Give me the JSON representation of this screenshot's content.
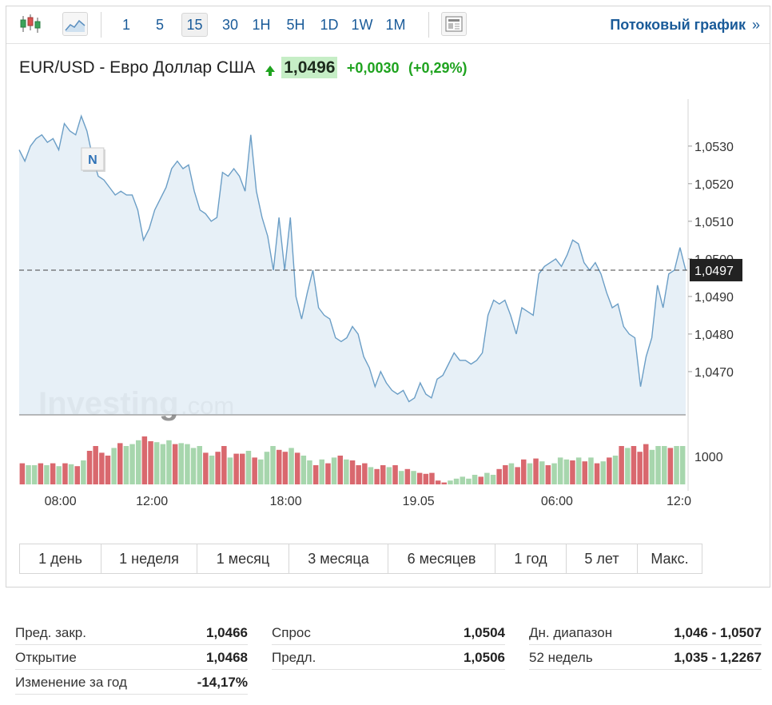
{
  "toolbar": {
    "candles_icon": "candlestick-icon",
    "area_icon": "area-chart-icon",
    "timeframes": [
      "1",
      "5",
      "15",
      "30",
      "1H",
      "5H",
      "1D",
      "1W",
      "1M"
    ],
    "active_timeframe": "15",
    "news_icon": "newspaper-icon",
    "stream_label": "Потоковый график",
    "stream_chevron": "»"
  },
  "instrument": {
    "title": "EUR/USD - Евро Доллар США",
    "price": "1,0496",
    "change": "+0,0030",
    "change_pct": "(+0,29%)",
    "up_color": "#1fa31f"
  },
  "chart_data": {
    "type": "area",
    "x_tick_labels": [
      "08:00",
      "12:00",
      "18:00",
      "19.05",
      "06:00",
      "12:0"
    ],
    "y_tick_labels": [
      "1,0530",
      "1,0520",
      "1,0510",
      "1,0500",
      "1,0490",
      "1,0480",
      "1,0470"
    ],
    "ylim": [
      1.04585,
      1.05425
    ],
    "current_price_label": "1,0497",
    "current_price": 1.0497,
    "event_marker": "N",
    "watermark_brand": "Investing",
    "watermark_suffix": ".com",
    "series": [
      {
        "values": [
          1.0529,
          1.0526,
          1.053,
          1.0532,
          1.0533,
          1.0531,
          1.0532,
          1.0529,
          1.0536,
          1.0534,
          1.0533,
          1.0538,
          1.0534,
          1.0527,
          1.0522,
          1.0521,
          1.0519,
          1.0517,
          1.0518,
          1.0517,
          1.0517,
          1.0513,
          1.0505,
          1.0508,
          1.0513,
          1.0516,
          1.0519,
          1.0524,
          1.0526,
          1.0524,
          1.0525,
          1.0518,
          1.0513,
          1.0512,
          1.051,
          1.0511,
          1.0523,
          1.0522,
          1.0524,
          1.0522,
          1.0518,
          1.0533,
          1.0518,
          1.0511,
          1.0506,
          1.0497,
          1.0511,
          1.0497,
          1.0511,
          1.049,
          1.0484,
          1.0491,
          1.0497,
          1.0487,
          1.0485,
          1.0484,
          1.0479,
          1.0478,
          1.0479,
          1.0482,
          1.048,
          1.0474,
          1.0471,
          1.0466,
          1.047,
          1.0467,
          1.0465,
          1.0464,
          1.0465,
          1.0462,
          1.0463,
          1.0467,
          1.0464,
          1.0463,
          1.0468,
          1.0469,
          1.0472,
          1.0475,
          1.0473,
          1.0473,
          1.0472,
          1.0473,
          1.0475,
          1.0485,
          1.0489,
          1.0488,
          1.0489,
          1.0485,
          1.048,
          1.0487,
          1.0486,
          1.0485,
          1.0496,
          1.0498,
          1.0499,
          1.05,
          1.0498,
          1.0501,
          1.0505,
          1.0504,
          1.0499,
          1.0497,
          1.0499,
          1.0496,
          1.0491,
          1.0487,
          1.0488,
          1.0482,
          1.048,
          1.0479,
          1.0466,
          1.0474,
          1.0479,
          1.0493,
          1.0487,
          1.0496,
          1.0497,
          1.0503,
          1.0497
        ]
      }
    ],
    "volume_tick_label": "1000",
    "volume": [
      {
        "v": 22,
        "up": false
      },
      {
        "v": 20,
        "up": true
      },
      {
        "v": 20,
        "up": true
      },
      {
        "v": 22,
        "up": false
      },
      {
        "v": 20,
        "up": true
      },
      {
        "v": 22,
        "up": false
      },
      {
        "v": 19,
        "up": true
      },
      {
        "v": 22,
        "up": false
      },
      {
        "v": 21,
        "up": true
      },
      {
        "v": 19,
        "up": false
      },
      {
        "v": 25,
        "up": true
      },
      {
        "v": 35,
        "up": false
      },
      {
        "v": 40,
        "up": false
      },
      {
        "v": 33,
        "up": false
      },
      {
        "v": 30,
        "up": false
      },
      {
        "v": 38,
        "up": true
      },
      {
        "v": 43,
        "up": false
      },
      {
        "v": 40,
        "up": true
      },
      {
        "v": 42,
        "up": true
      },
      {
        "v": 46,
        "up": true
      },
      {
        "v": 50,
        "up": false
      },
      {
        "v": 45,
        "up": false
      },
      {
        "v": 44,
        "up": true
      },
      {
        "v": 42,
        "up": true
      },
      {
        "v": 46,
        "up": true
      },
      {
        "v": 42,
        "up": false
      },
      {
        "v": 43,
        "up": true
      },
      {
        "v": 42,
        "up": true
      },
      {
        "v": 38,
        "up": true
      },
      {
        "v": 40,
        "up": true
      },
      {
        "v": 33,
        "up": false
      },
      {
        "v": 30,
        "up": true
      },
      {
        "v": 34,
        "up": false
      },
      {
        "v": 40,
        "up": false
      },
      {
        "v": 28,
        "up": true
      },
      {
        "v": 32,
        "up": false
      },
      {
        "v": 32,
        "up": false
      },
      {
        "v": 35,
        "up": true
      },
      {
        "v": 28,
        "up": false
      },
      {
        "v": 26,
        "up": true
      },
      {
        "v": 34,
        "up": true
      },
      {
        "v": 40,
        "up": true
      },
      {
        "v": 36,
        "up": false
      },
      {
        "v": 34,
        "up": false
      },
      {
        "v": 38,
        "up": true
      },
      {
        "v": 33,
        "up": false
      },
      {
        "v": 30,
        "up": true
      },
      {
        "v": 25,
        "up": true
      },
      {
        "v": 20,
        "up": false
      },
      {
        "v": 26,
        "up": true
      },
      {
        "v": 22,
        "up": false
      },
      {
        "v": 28,
        "up": true
      },
      {
        "v": 30,
        "up": false
      },
      {
        "v": 26,
        "up": true
      },
      {
        "v": 25,
        "up": false
      },
      {
        "v": 20,
        "up": false
      },
      {
        "v": 22,
        "up": false
      },
      {
        "v": 18,
        "up": true
      },
      {
        "v": 16,
        "up": false
      },
      {
        "v": 20,
        "up": false
      },
      {
        "v": 18,
        "up": true
      },
      {
        "v": 20,
        "up": false
      },
      {
        "v": 14,
        "up": true
      },
      {
        "v": 16,
        "up": false
      },
      {
        "v": 14,
        "up": true
      },
      {
        "v": 12,
        "up": false
      },
      {
        "v": 11,
        "up": false
      },
      {
        "v": 12,
        "up": false
      },
      {
        "v": 4,
        "up": false
      },
      {
        "v": 2,
        "up": false
      },
      {
        "v": 4,
        "up": true
      },
      {
        "v": 6,
        "up": true
      },
      {
        "v": 8,
        "up": true
      },
      {
        "v": 6,
        "up": true
      },
      {
        "v": 10,
        "up": true
      },
      {
        "v": 8,
        "up": false
      },
      {
        "v": 12,
        "up": true
      },
      {
        "v": 10,
        "up": true
      },
      {
        "v": 16,
        "up": false
      },
      {
        "v": 20,
        "up": false
      },
      {
        "v": 22,
        "up": true
      },
      {
        "v": 18,
        "up": false
      },
      {
        "v": 26,
        "up": false
      },
      {
        "v": 22,
        "up": true
      },
      {
        "v": 27,
        "up": false
      },
      {
        "v": 24,
        "up": true
      },
      {
        "v": 20,
        "up": false
      },
      {
        "v": 22,
        "up": true
      },
      {
        "v": 28,
        "up": true
      },
      {
        "v": 26,
        "up": true
      },
      {
        "v": 25,
        "up": false
      },
      {
        "v": 28,
        "up": true
      },
      {
        "v": 24,
        "up": false
      },
      {
        "v": 28,
        "up": true
      },
      {
        "v": 22,
        "up": false
      },
      {
        "v": 24,
        "up": true
      },
      {
        "v": 28,
        "up": false
      },
      {
        "v": 30,
        "up": true
      },
      {
        "v": 40,
        "up": false
      },
      {
        "v": 38,
        "up": true
      },
      {
        "v": 40,
        "up": false
      },
      {
        "v": 34,
        "up": false
      },
      {
        "v": 42,
        "up": false
      },
      {
        "v": 36,
        "up": true
      },
      {
        "v": 40,
        "up": true
      },
      {
        "v": 40,
        "up": true
      },
      {
        "v": 38,
        "up": false
      },
      {
        "v": 40,
        "up": true
      },
      {
        "v": 40,
        "up": true
      }
    ],
    "line_color": "#6b9ec6",
    "fill_color": "#e4eef6",
    "vol_up_color": "#a7d6ad",
    "vol_down_color": "#d9686e"
  },
  "periods": [
    "1 день",
    "1 неделя",
    "1 месяц",
    "3 месяца",
    "6 месяцев",
    "1 год",
    "5 лет",
    "Макс."
  ],
  "stats": {
    "col1": [
      {
        "label": "Пред. закр.",
        "value": "1,0466"
      },
      {
        "label": "Открытие",
        "value": "1,0468"
      },
      {
        "label": "Изменение за год",
        "value": "-14,17%"
      }
    ],
    "col2": [
      {
        "label": "Спрос",
        "value": "1,0504"
      },
      {
        "label": "Предл.",
        "value": "1,0506"
      }
    ],
    "col3": [
      {
        "label": "Дн. диапазон",
        "value": "1,046 - 1,0507"
      },
      {
        "label": "52 недель",
        "value": "1,035 - 1,2267"
      }
    ]
  }
}
